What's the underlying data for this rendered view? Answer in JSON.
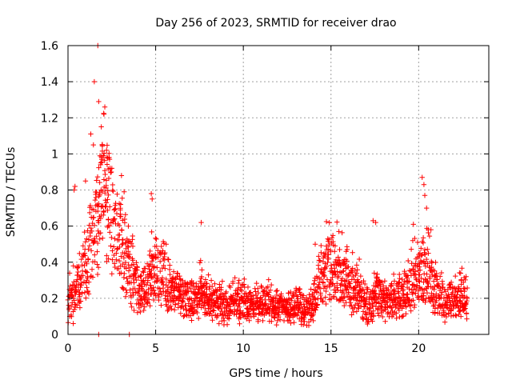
{
  "chart_data": {
    "type": "scatter",
    "title": "Day 256 of 2023, SRMTID for receiver drao",
    "xlabel": "GPS time / hours",
    "ylabel": "SRMTID / TECUs",
    "xlim": [
      0,
      24
    ],
    "ylim": [
      0,
      1.6
    ],
    "xticks": [
      0,
      5,
      10,
      15,
      20
    ],
    "xtick_labels": [
      "0",
      "5",
      "10",
      "15",
      "20"
    ],
    "yticks": [
      0,
      0.2,
      0.4,
      0.6,
      0.8,
      1.0,
      1.2,
      1.4,
      1.6
    ],
    "ytick_labels": [
      "0",
      "0.2",
      "0.4",
      "0.6",
      "0.8",
      "1",
      "1.2",
      "1.4",
      "1.6"
    ],
    "grid": true,
    "marker": "+",
    "color": "#ff0000",
    "series": [
      {
        "name": "SRMTID",
        "baseline": [
          [
            0.0,
            0.17
          ],
          [
            0.4,
            0.22
          ],
          [
            0.8,
            0.34
          ],
          [
            1.2,
            0.45
          ],
          [
            1.6,
            0.62
          ],
          [
            2.0,
            0.75
          ],
          [
            2.3,
            0.72
          ],
          [
            2.6,
            0.58
          ],
          [
            3.0,
            0.48
          ],
          [
            3.4,
            0.38
          ],
          [
            3.8,
            0.27
          ],
          [
            4.2,
            0.22
          ],
          [
            4.6,
            0.3
          ],
          [
            5.0,
            0.36
          ],
          [
            5.4,
            0.33
          ],
          [
            5.8,
            0.26
          ],
          [
            6.4,
            0.21
          ],
          [
            7.0,
            0.19
          ],
          [
            7.6,
            0.22
          ],
          [
            8.2,
            0.17
          ],
          [
            9.0,
            0.15
          ],
          [
            9.6,
            0.17
          ],
          [
            10.2,
            0.18
          ],
          [
            10.8,
            0.16
          ],
          [
            11.4,
            0.17
          ],
          [
            12.0,
            0.15
          ],
          [
            12.6,
            0.14
          ],
          [
            13.2,
            0.16
          ],
          [
            13.6,
            0.14
          ],
          [
            14.0,
            0.16
          ],
          [
            14.3,
            0.3
          ],
          [
            14.7,
            0.34
          ],
          [
            15.2,
            0.36
          ],
          [
            15.6,
            0.3
          ],
          [
            16.0,
            0.26
          ],
          [
            16.4,
            0.25
          ],
          [
            16.8,
            0.2
          ],
          [
            17.2,
            0.14
          ],
          [
            17.6,
            0.22
          ],
          [
            18.0,
            0.18
          ],
          [
            18.5,
            0.19
          ],
          [
            19.0,
            0.21
          ],
          [
            19.5,
            0.25
          ],
          [
            20.0,
            0.34
          ],
          [
            20.3,
            0.38
          ],
          [
            20.6,
            0.3
          ],
          [
            21.0,
            0.22
          ],
          [
            21.5,
            0.18
          ],
          [
            22.0,
            0.17
          ],
          [
            22.4,
            0.2
          ],
          [
            22.8,
            0.2
          ]
        ],
        "outliers": [
          [
            1.7,
            1.6
          ],
          [
            1.5,
            1.4
          ],
          [
            1.75,
            1.29
          ],
          [
            2.1,
            1.26
          ],
          [
            2.05,
            1.22
          ],
          [
            1.9,
            1.15
          ],
          [
            1.3,
            1.11
          ],
          [
            1.95,
            1.05
          ],
          [
            2.2,
            1.02
          ],
          [
            1.45,
            1.05
          ],
          [
            2.35,
            0.98
          ],
          [
            2.5,
            0.92
          ],
          [
            0.4,
            0.82
          ],
          [
            0.35,
            0.8
          ],
          [
            3.05,
            0.88
          ],
          [
            3.2,
            0.79
          ],
          [
            4.75,
            0.78
          ],
          [
            4.8,
            0.75
          ],
          [
            1.0,
            0.85
          ],
          [
            7.6,
            0.62
          ],
          [
            17.4,
            0.63
          ],
          [
            17.55,
            0.62
          ],
          [
            19.7,
            0.61
          ],
          [
            20.2,
            0.87
          ],
          [
            20.3,
            0.83
          ],
          [
            20.35,
            0.77
          ],
          [
            20.45,
            0.7
          ],
          [
            20.7,
            0.58
          ],
          [
            14.1,
            0.5
          ],
          [
            15.45,
            0.57
          ],
          [
            5.6,
            0.5
          ],
          [
            3.5,
            0.0
          ],
          [
            1.75,
            0.0
          ],
          [
            0.3,
            0.06
          ],
          [
            0.1,
            0.1
          ]
        ]
      }
    ]
  }
}
